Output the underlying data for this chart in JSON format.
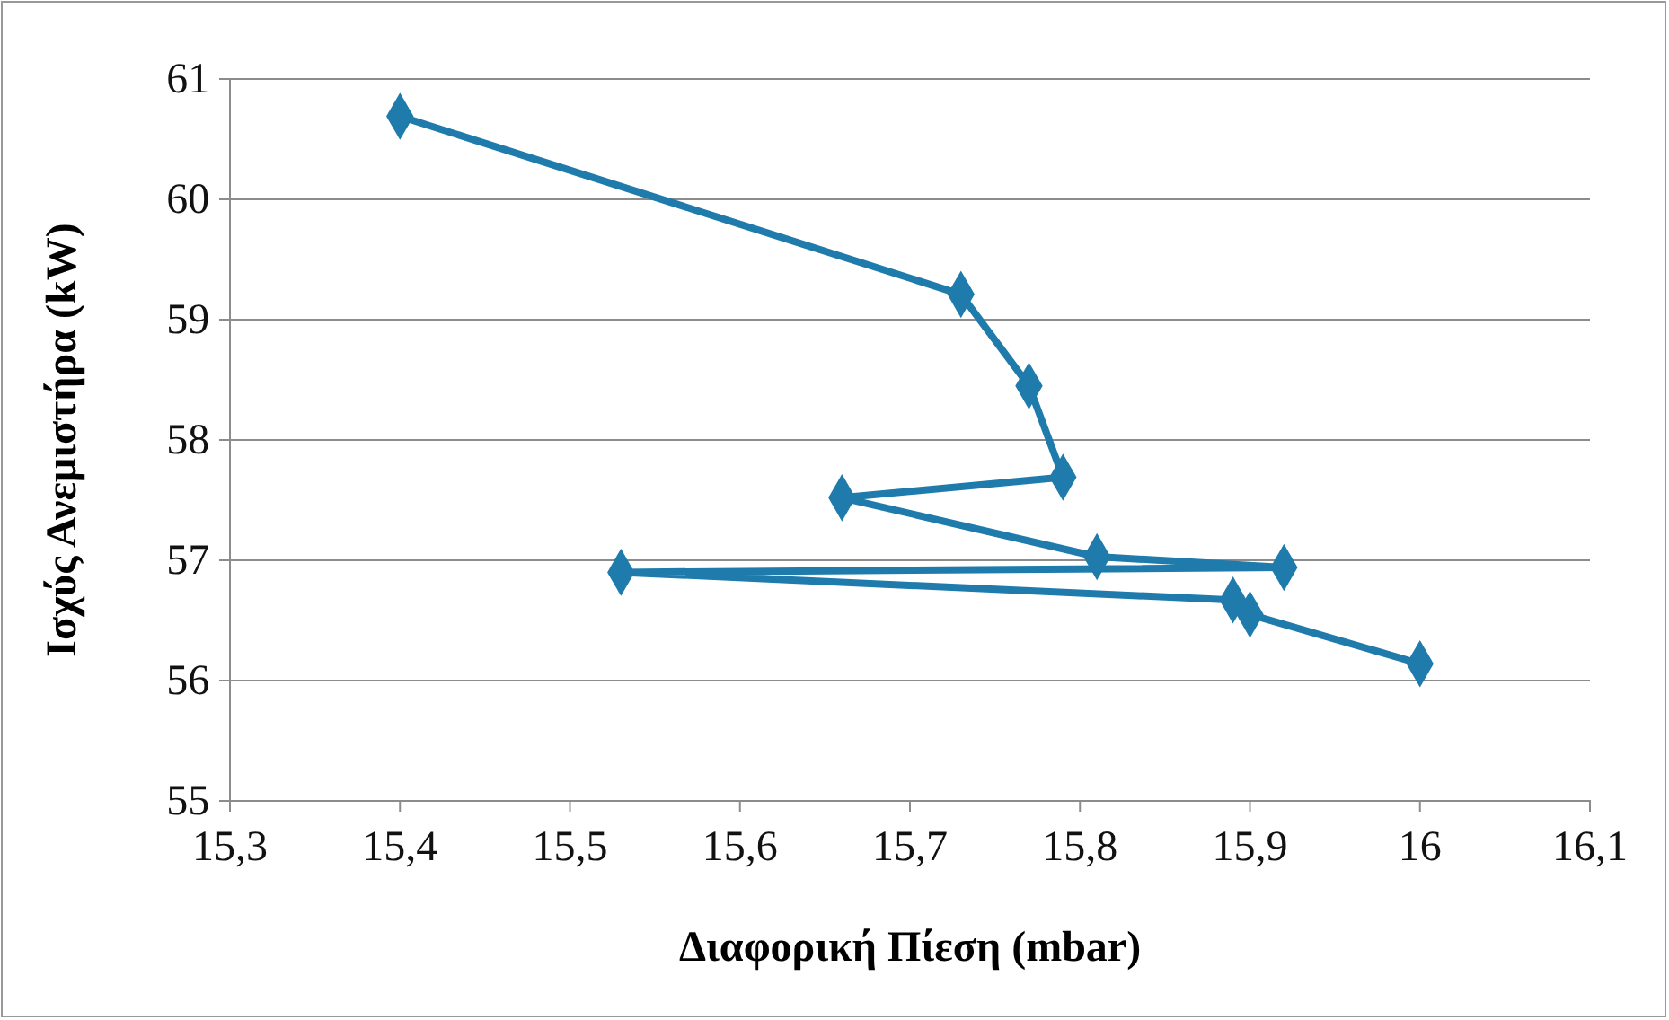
{
  "chart_data": {
    "type": "line",
    "xlabel": "Διαφορική Πίεση (mbar)",
    "ylabel": "Ισχύς Ανεμιστήρα (kW)",
    "x": [
      15.4,
      15.73,
      15.77,
      15.79,
      15.66,
      15.81,
      15.92,
      15.53,
      15.89,
      15.9,
      16.0
    ],
    "series": [
      {
        "color": "#1f7bab",
        "values": [
          60.69,
          59.21,
          58.45,
          57.69,
          57.52,
          57.03,
          56.94,
          56.9,
          56.67,
          56.55,
          56.14
        ]
      }
    ],
    "xlim": [
      15.3,
      16.1
    ],
    "xticks": [
      {
        "value": 15.3,
        "label": "15,3"
      },
      {
        "value": 15.4,
        "label": "15,4"
      },
      {
        "value": 15.5,
        "label": "15,5"
      },
      {
        "value": 15.6,
        "label": "15,6"
      },
      {
        "value": 15.7,
        "label": "15,7"
      },
      {
        "value": 15.8,
        "label": "15,8"
      },
      {
        "value": 15.9,
        "label": "15,9"
      },
      {
        "value": 16,
        "label": "16"
      },
      {
        "value": 16.1,
        "label": "16,1"
      }
    ],
    "ylim": [
      55,
      61
    ],
    "yticks": [
      55,
      56,
      57,
      58,
      59,
      60,
      61
    ],
    "grid": "y",
    "marker": "diamond",
    "line_style": "solid"
  }
}
